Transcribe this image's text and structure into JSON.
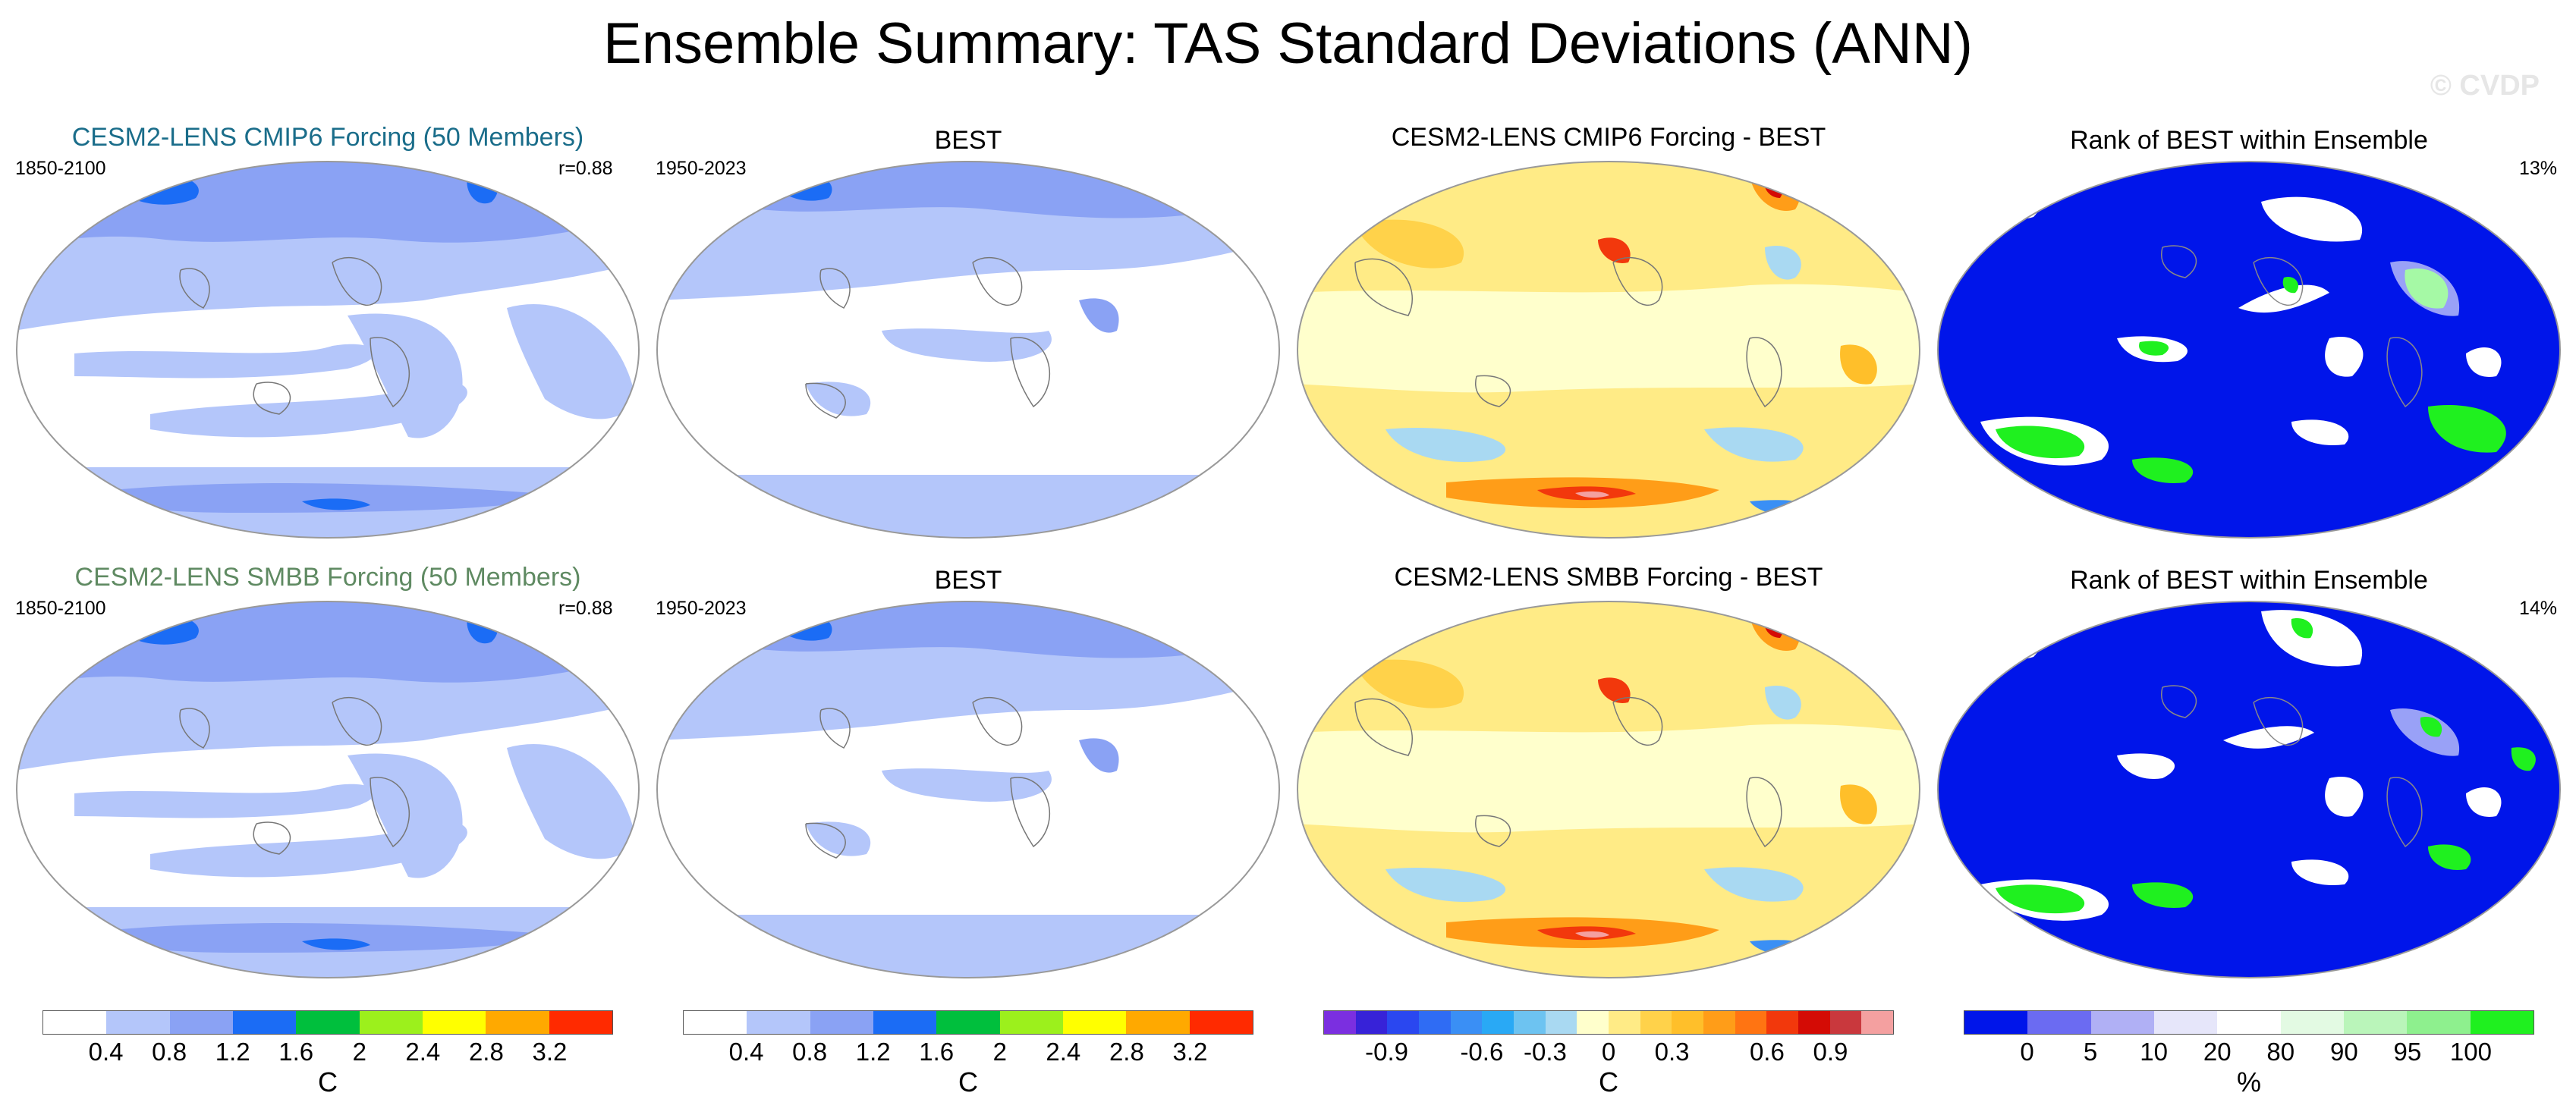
{
  "title": "Ensemble Summary: TAS Standard Deviations (ANN)",
  "watermark": "© CVDP",
  "rows": [
    {
      "panels": [
        {
          "title": "CESM2-LENS CMIP6 Forcing (50 Members)",
          "title_color": "#1a6d8a",
          "left_label": "1850-2100",
          "right_label": "r=0.88"
        },
        {
          "title": "BEST",
          "title_color": "#000000",
          "left_label": "1950-2023",
          "right_label": ""
        },
        {
          "title": "CESM2-LENS CMIP6 Forcing - BEST",
          "title_color": "#000000",
          "left_label": "",
          "right_label": ""
        },
        {
          "title": "Rank of BEST within Ensemble",
          "title_color": "#000000",
          "left_label": "",
          "right_label": "13%"
        }
      ]
    },
    {
      "panels": [
        {
          "title": "CESM2-LENS SMBB Forcing (50 Members)",
          "title_color": "#5f8a62",
          "left_label": "1850-2100",
          "right_label": "r=0.88"
        },
        {
          "title": "BEST",
          "title_color": "#000000",
          "left_label": "1950-2023",
          "right_label": ""
        },
        {
          "title": "CESM2-LENS SMBB Forcing - BEST",
          "title_color": "#000000",
          "left_label": "",
          "right_label": ""
        },
        {
          "title": "Rank of BEST within Ensemble",
          "title_color": "#000000",
          "left_label": "",
          "right_label": "14%"
        }
      ]
    }
  ],
  "colorbars": [
    {
      "unit": "C",
      "ticks": [
        "0.4",
        "0.8",
        "1.2",
        "1.6",
        "2",
        "2.4",
        "2.8",
        "3.2"
      ],
      "colors": [
        "#ffffff",
        "#b4c6fa",
        "#8aa2f4",
        "#1b6cf5",
        "#00bf3d",
        "#9cf01c",
        "#ffff00",
        "#ffa900",
        "#ff2a00"
      ]
    },
    {
      "unit": "C",
      "ticks": [
        "0.4",
        "0.8",
        "1.2",
        "1.6",
        "2",
        "2.4",
        "2.8",
        "3.2"
      ],
      "colors": [
        "#ffffff",
        "#b4c6fa",
        "#8aa2f4",
        "#1b6cf5",
        "#00bf3d",
        "#9cf01c",
        "#ffff00",
        "#ffa900",
        "#ff2a00"
      ]
    },
    {
      "unit": "C",
      "ticks": [
        "-0.9",
        "-0.6",
        "-0.3",
        "0",
        "0.3",
        "0.6",
        "0.9"
      ],
      "colors": [
        "#7b2fe0",
        "#3722d8",
        "#2a47f0",
        "#2f6cf4",
        "#3a8ff5",
        "#29a9f5",
        "#6dc3f1",
        "#a9d9f2",
        "#ffffcc",
        "#ffeb86",
        "#ffd24a",
        "#ffbf2a",
        "#ff9d18",
        "#ff7412",
        "#f2380c",
        "#d40b05",
        "#c9383d",
        "#f4a0a0"
      ]
    },
    {
      "unit": "%",
      "ticks": [
        "0",
        "5",
        "10",
        "20",
        "80",
        "90",
        "95",
        "100"
      ],
      "colors": [
        "#0015ea",
        "#6b6bf2",
        "#b0b0f5",
        "#e6e6fa",
        "#ffffff",
        "#e3fae3",
        "#baf5ba",
        "#8ef08e",
        "#1ff01f"
      ]
    }
  ]
}
